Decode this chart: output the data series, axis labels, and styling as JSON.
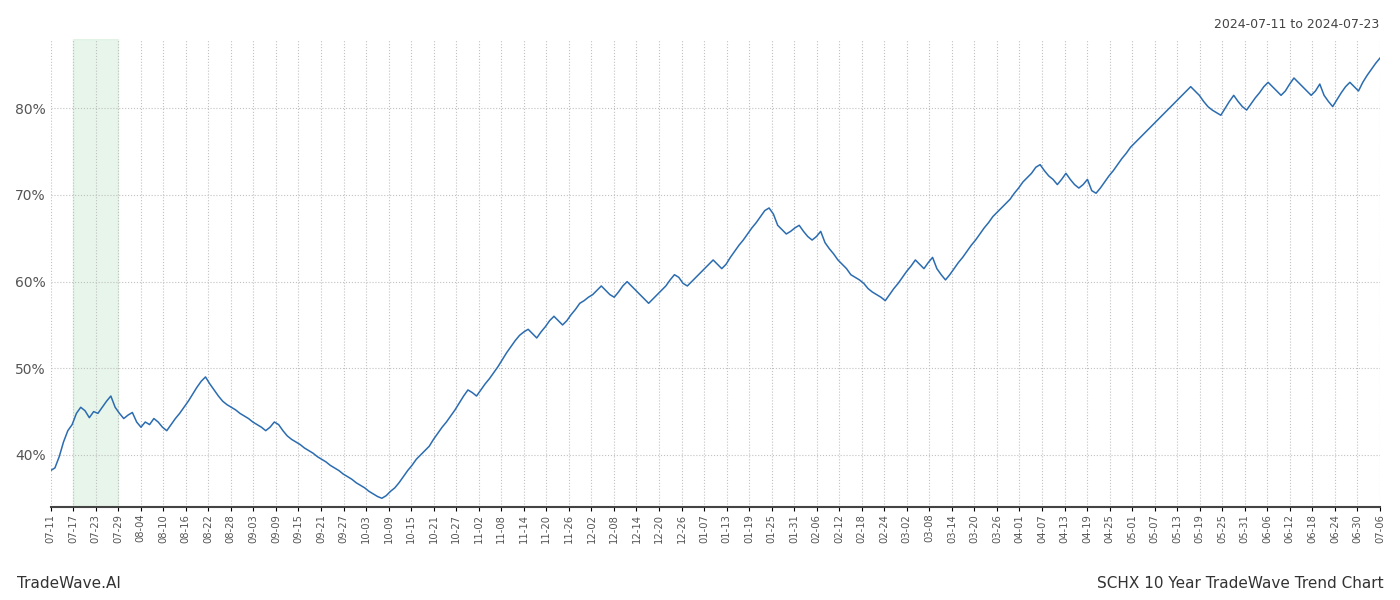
{
  "title_top_right": "2024-07-11 to 2024-07-23",
  "title_bottom_left": "TradeWave.AI",
  "title_bottom_right": "SCHX 10 Year TradeWave Trend Chart",
  "line_color": "#2b6cb0",
  "line_width": 1.1,
  "shaded_region_color": "#d4edda",
  "shaded_region_alpha": 0.55,
  "background_color": "#ffffff",
  "grid_color": "#bbbbbb",
  "grid_style": ":",
  "grid_alpha": 0.9,
  "ylim": [
    34,
    88
  ],
  "yticks": [
    40,
    50,
    60,
    70,
    80
  ],
  "xlabel_fontsize": 7.2,
  "tick_label_color": "#555555",
  "x_labels": [
    "07-11",
    "07-17",
    "07-23",
    "07-29",
    "08-04",
    "08-10",
    "08-16",
    "08-22",
    "08-28",
    "09-03",
    "09-09",
    "09-15",
    "09-21",
    "09-27",
    "10-03",
    "10-09",
    "10-15",
    "10-21",
    "10-27",
    "11-02",
    "11-08",
    "11-14",
    "11-20",
    "11-26",
    "12-02",
    "12-08",
    "12-14",
    "12-20",
    "12-26",
    "01-07",
    "01-13",
    "01-19",
    "01-25",
    "01-31",
    "02-06",
    "02-12",
    "02-18",
    "02-24",
    "03-02",
    "03-08",
    "03-14",
    "03-20",
    "03-26",
    "04-01",
    "04-07",
    "04-13",
    "04-19",
    "04-25",
    "05-01",
    "05-07",
    "05-13",
    "05-19",
    "05-25",
    "05-31",
    "06-06",
    "06-12",
    "06-18",
    "06-24",
    "06-30",
    "07-06"
  ],
  "shaded_start_label": "07-17",
  "shaded_end_label": "07-29",
  "y_values": [
    38.2,
    38.5,
    39.8,
    41.5,
    42.8,
    43.5,
    44.8,
    45.5,
    45.1,
    44.3,
    45.0,
    44.8,
    45.5,
    46.2,
    46.8,
    45.5,
    44.8,
    44.2,
    44.6,
    44.9,
    43.8,
    43.2,
    43.8,
    43.5,
    44.2,
    43.8,
    43.2,
    42.8,
    43.5,
    44.2,
    44.8,
    45.5,
    46.2,
    47.0,
    47.8,
    48.5,
    49.0,
    48.2,
    47.5,
    46.8,
    46.2,
    45.8,
    45.5,
    45.2,
    44.8,
    44.5,
    44.2,
    43.8,
    43.5,
    43.2,
    42.8,
    43.2,
    43.8,
    43.5,
    42.8,
    42.2,
    41.8,
    41.5,
    41.2,
    40.8,
    40.5,
    40.2,
    39.8,
    39.5,
    39.2,
    38.8,
    38.5,
    38.2,
    37.8,
    37.5,
    37.2,
    36.8,
    36.5,
    36.2,
    35.8,
    35.5,
    35.2,
    35.0,
    35.3,
    35.8,
    36.2,
    36.8,
    37.5,
    38.2,
    38.8,
    39.5,
    40.0,
    40.5,
    41.0,
    41.8,
    42.5,
    43.2,
    43.8,
    44.5,
    45.2,
    46.0,
    46.8,
    47.5,
    47.2,
    46.8,
    47.5,
    48.2,
    48.8,
    49.5,
    50.2,
    51.0,
    51.8,
    52.5,
    53.2,
    53.8,
    54.2,
    54.5,
    54.0,
    53.5,
    54.2,
    54.8,
    55.5,
    56.0,
    55.5,
    55.0,
    55.5,
    56.2,
    56.8,
    57.5,
    57.8,
    58.2,
    58.5,
    59.0,
    59.5,
    59.0,
    58.5,
    58.2,
    58.8,
    59.5,
    60.0,
    59.5,
    59.0,
    58.5,
    58.0,
    57.5,
    58.0,
    58.5,
    59.0,
    59.5,
    60.2,
    60.8,
    60.5,
    59.8,
    59.5,
    60.0,
    60.5,
    61.0,
    61.5,
    62.0,
    62.5,
    62.0,
    61.5,
    62.0,
    62.8,
    63.5,
    64.2,
    64.8,
    65.5,
    66.2,
    66.8,
    67.5,
    68.2,
    68.5,
    67.8,
    66.5,
    66.0,
    65.5,
    65.8,
    66.2,
    66.5,
    65.8,
    65.2,
    64.8,
    65.2,
    65.8,
    64.5,
    63.8,
    63.2,
    62.5,
    62.0,
    61.5,
    60.8,
    60.5,
    60.2,
    59.8,
    59.2,
    58.8,
    58.5,
    58.2,
    57.8,
    58.5,
    59.2,
    59.8,
    60.5,
    61.2,
    61.8,
    62.5,
    62.0,
    61.5,
    62.2,
    62.8,
    61.5,
    60.8,
    60.2,
    60.8,
    61.5,
    62.2,
    62.8,
    63.5,
    64.2,
    64.8,
    65.5,
    66.2,
    66.8,
    67.5,
    68.0,
    68.5,
    69.0,
    69.5,
    70.2,
    70.8,
    71.5,
    72.0,
    72.5,
    73.2,
    73.5,
    72.8,
    72.2,
    71.8,
    71.2,
    71.8,
    72.5,
    71.8,
    71.2,
    70.8,
    71.2,
    71.8,
    70.5,
    70.2,
    70.8,
    71.5,
    72.2,
    72.8,
    73.5,
    74.2,
    74.8,
    75.5,
    76.0,
    76.5,
    77.0,
    77.5,
    78.0,
    78.5,
    79.0,
    79.5,
    80.0,
    80.5,
    81.0,
    81.5,
    82.0,
    82.5,
    82.0,
    81.5,
    80.8,
    80.2,
    79.8,
    79.5,
    79.2,
    80.0,
    80.8,
    81.5,
    80.8,
    80.2,
    79.8,
    80.5,
    81.2,
    81.8,
    82.5,
    83.0,
    82.5,
    82.0,
    81.5,
    82.0,
    82.8,
    83.5,
    83.0,
    82.5,
    82.0,
    81.5,
    82.0,
    82.8,
    81.5,
    80.8,
    80.2,
    81.0,
    81.8,
    82.5,
    83.0,
    82.5,
    82.0,
    83.0,
    83.8,
    84.5,
    85.2,
    85.8
  ]
}
